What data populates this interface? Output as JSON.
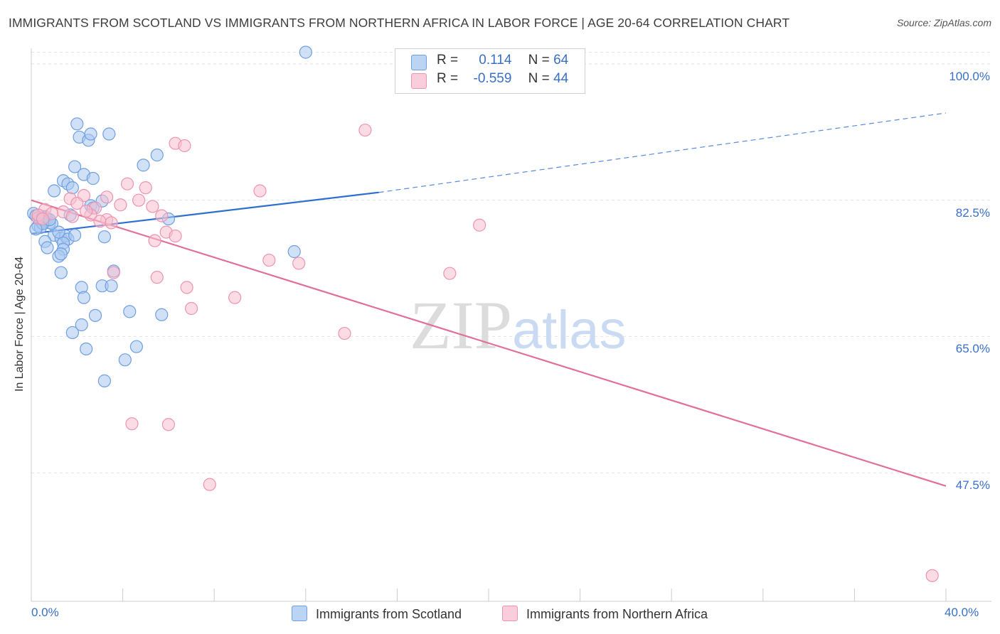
{
  "header": {
    "title": "IMMIGRANTS FROM SCOTLAND VS IMMIGRANTS FROM NORTHERN AFRICA IN LABOR FORCE | AGE 20-64 CORRELATION CHART",
    "source": "Source: ZipAtlas.com"
  },
  "watermark": {
    "zip": "ZIP",
    "atlas": "atlas"
  },
  "legend": {
    "scotland": {
      "r_label": "R =",
      "r_value": "0.114",
      "n_label": "N =",
      "n_value": "64"
    },
    "africa": {
      "r_label": "R =",
      "r_value": "-0.559",
      "n_label": "N =",
      "n_value": "44"
    }
  },
  "bottom_legend": {
    "scotland": "Immigrants from Scotland",
    "africa": "Immigrants from Northern Africa"
  },
  "colors": {
    "scotland_fill": "#aac8f0",
    "scotland_stroke": "#6f9fe0",
    "scotland_line": "#2f6fd0",
    "africa_fill": "#f7bfd0",
    "africa_stroke": "#ec94b0",
    "africa_line": "#e0709a",
    "grid": "#e4e4e4",
    "axis_text": "#3a6fc6"
  },
  "chart_data": {
    "type": "scatter",
    "title": "IMMIGRANTS FROM SCOTLAND VS IMMIGRANTS FROM NORTHERN AFRICA IN LABOR FORCE | AGE 20-64 CORRELATION CHART",
    "xlabel": "",
    "ylabel": "In Labor Force | Age 20-64",
    "xlim": [
      0,
      40
    ],
    "ylim": [
      31,
      102
    ],
    "x_tick_labels": [
      "0.0%",
      "40.0%"
    ],
    "y_ticks": [
      100,
      82.5,
      65,
      47.5
    ],
    "y_tick_labels": [
      "100.0%",
      "82.5%",
      "65.0%",
      "47.5%"
    ],
    "grid": true,
    "legend_position": "top-center",
    "series": [
      {
        "name": "Immigrants from Scotland",
        "color": "#6f9fe0",
        "points": [
          [
            12.0,
            101.5
          ],
          [
            2.0,
            92.3
          ],
          [
            2.1,
            90.6
          ],
          [
            2.5,
            90.2
          ],
          [
            2.6,
            91.0
          ],
          [
            3.4,
            91.0
          ],
          [
            5.5,
            88.3
          ],
          [
            4.9,
            87.0
          ],
          [
            1.9,
            86.8
          ],
          [
            2.3,
            85.8
          ],
          [
            2.7,
            85.3
          ],
          [
            1.4,
            85.0
          ],
          [
            1.6,
            84.6
          ],
          [
            1.8,
            84.1
          ],
          [
            1.0,
            83.7
          ],
          [
            3.1,
            82.4
          ],
          [
            2.6,
            81.8
          ],
          [
            2.7,
            81.5
          ],
          [
            0.1,
            80.8
          ],
          [
            0.2,
            80.5
          ],
          [
            0.3,
            80.2
          ],
          [
            0.4,
            80.0
          ],
          [
            0.5,
            80.3
          ],
          [
            0.6,
            79.8
          ],
          [
            0.7,
            80.1
          ],
          [
            0.8,
            79.6
          ],
          [
            0.9,
            79.5
          ],
          [
            0.3,
            79.2
          ],
          [
            0.4,
            79.0
          ],
          [
            1.7,
            80.6
          ],
          [
            6.0,
            80.1
          ],
          [
            1.0,
            78.0
          ],
          [
            1.3,
            77.6
          ],
          [
            1.5,
            77.9
          ],
          [
            1.6,
            77.5
          ],
          [
            0.6,
            77.2
          ],
          [
            1.4,
            77.0
          ],
          [
            0.7,
            76.4
          ],
          [
            1.4,
            76.2
          ],
          [
            1.2,
            75.3
          ],
          [
            1.3,
            75.6
          ],
          [
            3.2,
            77.8
          ],
          [
            11.5,
            75.9
          ],
          [
            3.6,
            73.4
          ],
          [
            1.3,
            73.2
          ],
          [
            3.1,
            71.5
          ],
          [
            3.5,
            71.5
          ],
          [
            2.2,
            71.3
          ],
          [
            2.3,
            70.0
          ],
          [
            4.3,
            68.2
          ],
          [
            5.7,
            67.8
          ],
          [
            2.8,
            67.7
          ],
          [
            2.2,
            66.5
          ],
          [
            1.8,
            65.5
          ],
          [
            4.6,
            63.7
          ],
          [
            2.4,
            63.4
          ],
          [
            4.1,
            62.0
          ],
          [
            3.2,
            59.3
          ],
          [
            0.5,
            79.5
          ],
          [
            0.6,
            80.4
          ],
          [
            0.8,
            80.0
          ],
          [
            1.2,
            78.4
          ],
          [
            1.9,
            78.0
          ],
          [
            0.2,
            78.8
          ]
        ]
      },
      {
        "name": "Immigrants from Northern Africa",
        "color": "#ec94b0",
        "points": [
          [
            14.6,
            91.5
          ],
          [
            6.3,
            89.8
          ],
          [
            6.7,
            89.5
          ],
          [
            4.2,
            84.6
          ],
          [
            5.0,
            84.1
          ],
          [
            10.0,
            83.7
          ],
          [
            2.3,
            83.1
          ],
          [
            3.3,
            82.9
          ],
          [
            1.7,
            82.7
          ],
          [
            4.7,
            82.5
          ],
          [
            2.0,
            82.1
          ],
          [
            3.9,
            81.9
          ],
          [
            5.3,
            81.7
          ],
          [
            2.8,
            81.5
          ],
          [
            0.6,
            81.3
          ],
          [
            1.4,
            81.0
          ],
          [
            0.9,
            80.8
          ],
          [
            2.6,
            80.6
          ],
          [
            1.8,
            80.4
          ],
          [
            0.3,
            80.2
          ],
          [
            3.3,
            80.0
          ],
          [
            3.0,
            79.8
          ],
          [
            3.5,
            79.6
          ],
          [
            19.6,
            79.3
          ],
          [
            5.9,
            78.4
          ],
          [
            5.4,
            77.3
          ],
          [
            6.3,
            77.9
          ],
          [
            10.4,
            74.8
          ],
          [
            11.7,
            74.4
          ],
          [
            3.6,
            73.2
          ],
          [
            18.3,
            73.1
          ],
          [
            5.5,
            72.6
          ],
          [
            6.8,
            71.3
          ],
          [
            8.9,
            70.0
          ],
          [
            7.0,
            68.6
          ],
          [
            13.7,
            65.4
          ],
          [
            4.4,
            53.8
          ],
          [
            6.0,
            53.7
          ],
          [
            7.8,
            46.0
          ],
          [
            39.4,
            34.3
          ],
          [
            0.3,
            80.6
          ],
          [
            0.5,
            80.1
          ],
          [
            2.4,
            81.1
          ],
          [
            5.7,
            80.5
          ]
        ]
      }
    ],
    "trend_lines": [
      {
        "series": "Immigrants from Scotland",
        "solid": [
          [
            0,
            78.2
          ],
          [
            15.2,
            83.5
          ]
        ],
        "dashed": [
          [
            15.2,
            83.5
          ],
          [
            40,
            93.7
          ]
        ]
      },
      {
        "series": "Immigrants from Northern Africa",
        "solid": [
          [
            0,
            82.5
          ],
          [
            40,
            45.8
          ]
        ]
      }
    ]
  }
}
